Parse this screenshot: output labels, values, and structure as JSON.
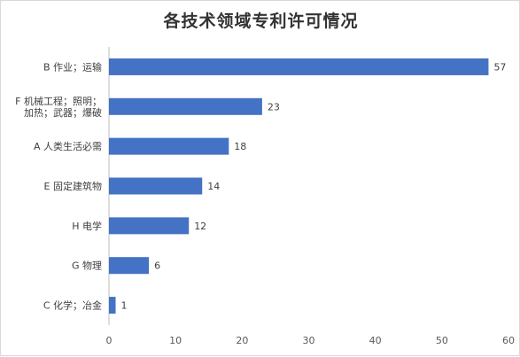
{
  "chart_data": {
    "type": "bar",
    "orientation": "horizontal",
    "title": "各技术领域专利许可情况",
    "categories": [
      [
        "B 作业；运输"
      ],
      [
        "F 机械工程；照明；",
        "加热；武器；爆破"
      ],
      [
        "A 人类生活必需"
      ],
      [
        "E 固定建筑物"
      ],
      [
        "H 电学"
      ],
      [
        "G 物理"
      ],
      [
        "C 化学；冶金"
      ]
    ],
    "values": [
      57,
      23,
      18,
      14,
      12,
      6,
      1
    ],
    "xlim": [
      0,
      60
    ],
    "xticks": [
      0,
      10,
      20,
      30,
      40,
      50,
      60
    ],
    "bar_color": "#4472c4",
    "grid": false,
    "legend": "none",
    "data_labels": true
  }
}
